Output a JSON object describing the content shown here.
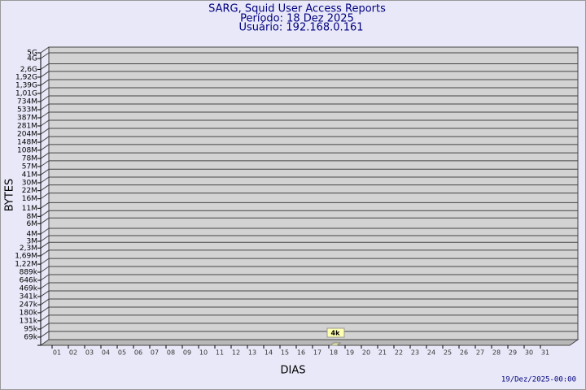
{
  "chart_data": {
    "type": "bar",
    "title": "SARG, Squid User Access Reports",
    "subtitle": "Período: 18 Dez 2025",
    "user": "Usuário: 192.168.0.161",
    "y_label": "BYTES",
    "x_label": "DIAS",
    "footer": "19/Dez/2025-00:00",
    "categories": [
      "01",
      "02",
      "03",
      "04",
      "05",
      "06",
      "07",
      "08",
      "09",
      "10",
      "11",
      "12",
      "13",
      "14",
      "15",
      "16",
      "17",
      "18",
      "19",
      "20",
      "21",
      "22",
      "23",
      "24",
      "25",
      "26",
      "27",
      "28",
      "29",
      "30",
      "31"
    ],
    "values": [
      null,
      null,
      null,
      null,
      null,
      null,
      null,
      null,
      null,
      null,
      null,
      null,
      null,
      null,
      null,
      null,
      null,
      4000,
      null,
      null,
      null,
      null,
      null,
      null,
      null,
      null,
      null,
      null,
      null,
      null,
      null
    ],
    "value_labels": [
      null,
      null,
      null,
      null,
      null,
      null,
      null,
      null,
      null,
      null,
      null,
      null,
      null,
      null,
      null,
      null,
      null,
      "4k",
      null,
      null,
      null,
      null,
      null,
      null,
      null,
      null,
      null,
      null,
      null,
      null,
      null
    ],
    "color": "#f0f0a0",
    "log_scale": true,
    "ylim": [
      50000,
      5000000000
    ],
    "yticks": [
      {
        "value": 69000,
        "label": "69k"
      },
      {
        "value": 95000,
        "label": "95k"
      },
      {
        "value": 131000,
        "label": "131k"
      },
      {
        "value": 180000,
        "label": "180k"
      },
      {
        "value": 247000,
        "label": "247k"
      },
      {
        "value": 341000,
        "label": "341k"
      },
      {
        "value": 469000,
        "label": "469k"
      },
      {
        "value": 646000,
        "label": "646k"
      },
      {
        "value": 889000,
        "label": "889k"
      },
      {
        "value": 1220000,
        "label": "1,22M"
      },
      {
        "value": 1690000,
        "label": "1,69M"
      },
      {
        "value": 2300000,
        "label": "2,3M"
      },
      {
        "value": 3000000,
        "label": "3M"
      },
      {
        "value": 4000000,
        "label": "4M"
      },
      {
        "value": 6000000,
        "label": "6M"
      },
      {
        "value": 8000000,
        "label": "8M"
      },
      {
        "value": 11000000,
        "label": "11M"
      },
      {
        "value": 16000000,
        "label": "16M"
      },
      {
        "value": 22000000,
        "label": "22M"
      },
      {
        "value": 30000000,
        "label": "30M"
      },
      {
        "value": 41000000,
        "label": "41M"
      },
      {
        "value": 57000000,
        "label": "57M"
      },
      {
        "value": 78000000,
        "label": "78M"
      },
      {
        "value": 108000000,
        "label": "108M"
      },
      {
        "value": 148000000,
        "label": "148M"
      },
      {
        "value": 204000000,
        "label": "204M"
      },
      {
        "value": 281000000,
        "label": "281M"
      },
      {
        "value": 387000000,
        "label": "387M"
      },
      {
        "value": 533000000,
        "label": "533M"
      },
      {
        "value": 734000000,
        "label": "734M"
      },
      {
        "value": 1010000000,
        "label": "1,01G"
      },
      {
        "value": 1390000000,
        "label": "1,39G"
      },
      {
        "value": 1920000000,
        "label": "1,92G"
      },
      {
        "value": 2600000000,
        "label": "2,6G"
      },
      {
        "value": 4000000000,
        "label": "4G"
      },
      {
        "value": 5000000000,
        "label": "5G"
      }
    ],
    "grid": true
  }
}
